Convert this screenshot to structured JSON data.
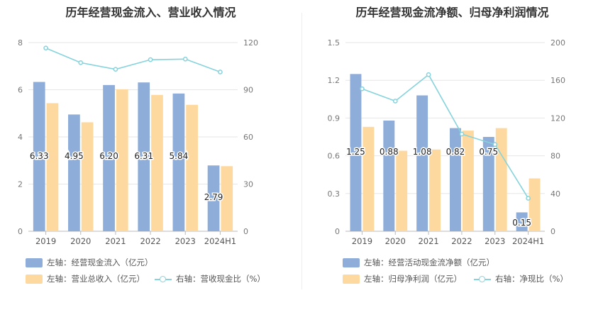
{
  "colors": {
    "bar_primary": "#8eadd9",
    "bar_secondary": "#fdd9a0",
    "line": "#85d3dc",
    "grid": "#e6e6e6",
    "axis_text": "#777777"
  },
  "chart_data": [
    {
      "type": "bar",
      "title": "历年经营现金流入、营业收入情况",
      "categories": [
        "2019",
        "2020",
        "2021",
        "2022",
        "2023",
        "2024H1"
      ],
      "left_axis": {
        "ticks": [
          "0",
          "2",
          "4",
          "6",
          "8"
        ],
        "ylim": [
          0,
          8
        ]
      },
      "right_axis": {
        "ticks": [
          "0",
          "30",
          "60",
          "90",
          "120"
        ],
        "ylim": [
          0,
          120
        ]
      },
      "series": [
        {
          "name": "左轴：经营现金流入（亿元）",
          "kind": "bar",
          "axis": "left",
          "values": [
            6.33,
            4.95,
            6.2,
            6.31,
            5.84,
            2.79
          ],
          "labels": [
            "6.33",
            "4.95",
            "6.20",
            "6.31",
            "5.84",
            "2.79"
          ]
        },
        {
          "name": "左轴：营业总收入（亿元）",
          "kind": "bar",
          "axis": "left",
          "values": [
            5.43,
            4.62,
            6.02,
            5.78,
            5.36,
            2.76
          ]
        },
        {
          "name": "右轴：营收现金比（%）",
          "kind": "line",
          "axis": "right",
          "values": [
            116.5,
            107.2,
            103.0,
            109.1,
            109.5,
            101.3
          ]
        }
      ]
    },
    {
      "type": "bar",
      "title": "历年经营现金流净额、归母净利润情况",
      "categories": [
        "2019",
        "2020",
        "2021",
        "2022",
        "2023",
        "2024H1"
      ],
      "left_axis": {
        "ticks": [
          "0",
          "0.3",
          "0.6",
          "0.9",
          "1.2",
          "1.5"
        ],
        "ylim": [
          0,
          1.5
        ]
      },
      "right_axis": {
        "ticks": [
          "0",
          "40",
          "80",
          "120",
          "160",
          "200"
        ],
        "ylim": [
          0,
          200
        ]
      },
      "series": [
        {
          "name": "左轴：经营活动现金流净额（亿元）",
          "kind": "bar",
          "axis": "left",
          "values": [
            1.25,
            0.88,
            1.08,
            0.82,
            0.75,
            0.15
          ],
          "labels": [
            "1.25",
            "0.88",
            "1.08",
            "0.82",
            "0.75",
            "0.15"
          ]
        },
        {
          "name": "左轴：归母净利润（亿元）",
          "kind": "bar",
          "axis": "left",
          "values": [
            0.83,
            0.64,
            0.65,
            0.8,
            0.82,
            0.42
          ]
        },
        {
          "name": "右轴：净现比（%）",
          "kind": "line",
          "axis": "right",
          "values": [
            151,
            138,
            166,
            103,
            92,
            35
          ]
        }
      ]
    }
  ]
}
